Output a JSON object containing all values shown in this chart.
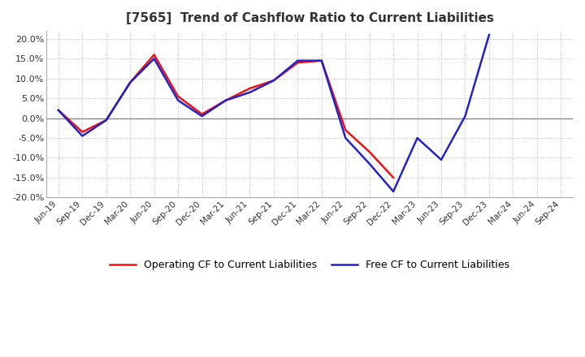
{
  "title": "[7565]  Trend of Cashflow Ratio to Current Liabilities",
  "x_labels": [
    "Jun-19",
    "Sep-19",
    "Dec-19",
    "Mar-20",
    "Jun-20",
    "Sep-20",
    "Dec-20",
    "Mar-21",
    "Jun-21",
    "Sep-21",
    "Dec-21",
    "Mar-22",
    "Jun-22",
    "Sep-22",
    "Dec-22",
    "Mar-23",
    "Jun-23",
    "Sep-23",
    "Dec-23",
    "Mar-24",
    "Jun-24",
    "Sep-24"
  ],
  "operating_cf": [
    2.0,
    -3.5,
    -0.5,
    9.0,
    16.0,
    5.5,
    1.0,
    4.5,
    7.5,
    9.5,
    14.0,
    14.5,
    -3.0,
    -8.5,
    -15.0,
    null,
    null,
    null,
    null,
    null,
    null,
    null
  ],
  "free_cf": [
    2.0,
    -4.5,
    -0.5,
    9.0,
    15.0,
    4.5,
    0.5,
    4.5,
    6.5,
    9.5,
    14.5,
    14.5,
    -5.0,
    -11.5,
    -18.5,
    -5.0,
    -10.5,
    0.5,
    21.0,
    null,
    null,
    null
  ],
  "operating_color": "#EE1111",
  "free_color": "#2222CC",
  "ylim": [
    -20.0,
    22.0
  ],
  "ytick_values": [
    -20.0,
    -15.0,
    -10.0,
    -5.0,
    0.0,
    5.0,
    10.0,
    15.0,
    20.0
  ],
  "legend_op": "Operating CF to Current Liabilities",
  "legend_free": "Free CF to Current Liabilities",
  "bg_color": "#FFFFFF",
  "plot_bg_color": "#FFFFFF",
  "grid_color": "#AAAAAA",
  "zero_line_color": "#888888",
  "title_color": "#333333",
  "linewidth": 1.8
}
